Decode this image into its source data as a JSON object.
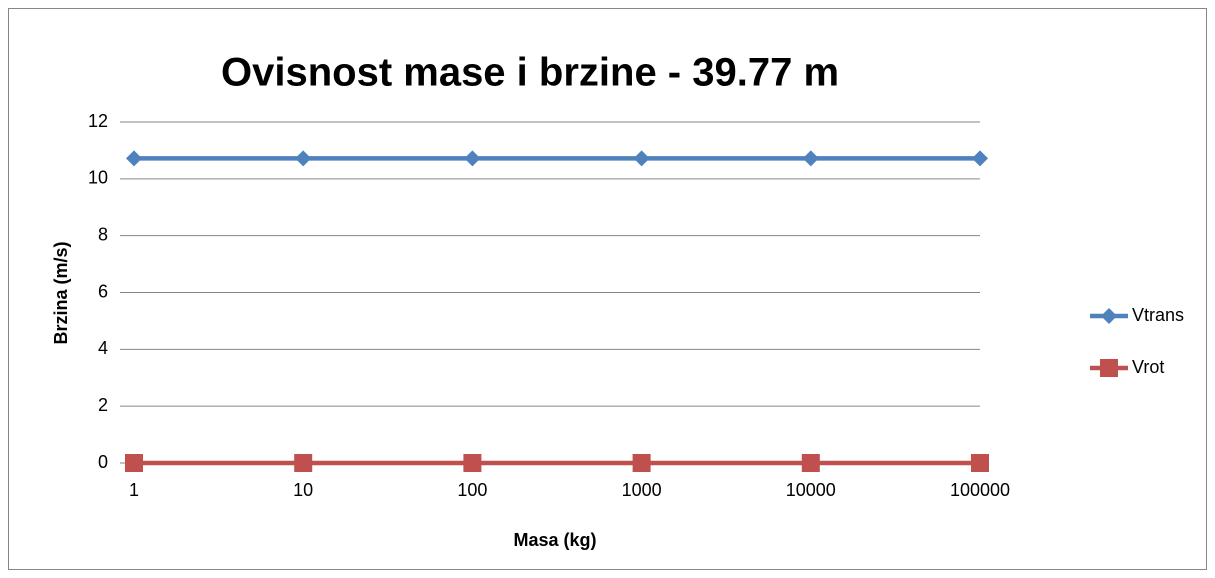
{
  "chart_data": {
    "type": "line",
    "title": "Ovisnost mase i brzine - 39.77 m",
    "xlabel": "Masa (kg)",
    "ylabel": "Brzina (m/s)",
    "categories": [
      "1",
      "10",
      "100",
      "1000",
      "10000",
      "100000"
    ],
    "series": [
      {
        "name": "Vtrans",
        "color": "#4f81bd",
        "marker": "diamond",
        "values": [
          10.72,
          10.72,
          10.72,
          10.72,
          10.72,
          10.72
        ]
      },
      {
        "name": "Vrot",
        "color": "#c0504d",
        "marker": "square",
        "values": [
          0,
          0,
          0,
          0,
          0,
          0
        ]
      }
    ],
    "ylim": [
      0,
      12
    ],
    "yticks": [
      0,
      2,
      4,
      6,
      8,
      10,
      12
    ],
    "grid": true,
    "legend": "right"
  }
}
